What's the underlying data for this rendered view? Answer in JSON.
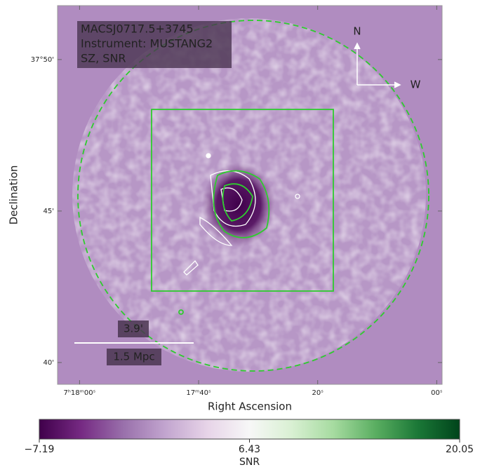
{
  "chart_data": {
    "type": "image",
    "xlabel": "Right Ascension",
    "ylabel": "Declination",
    "xlim": [
      63.7,
      -0.9
    ],
    "ylim": [
      39.28,
      51.78
    ],
    "xticks": [
      {
        "value": 60,
        "label": "7ʰ18ᵐ00ˢ"
      },
      {
        "value": 40,
        "label": "17ᵐ40ˢ"
      },
      {
        "value": 20,
        "label": "20ˢ"
      },
      {
        "value": 0,
        "label": "00ˢ"
      }
    ],
    "yticks": [
      {
        "value": 50,
        "label": "37°50'"
      },
      {
        "value": 45,
        "label": "45'"
      },
      {
        "value": 40,
        "label": "40'"
      }
    ],
    "annotations": [
      "MACSJ0717.5+3745",
      "Instrument: MUSTANG2",
      "SZ, SNR"
    ],
    "compass": [
      "N",
      "W"
    ],
    "scalebar": [
      "3.9'",
      "1.5 Mpc"
    ],
    "colorbar": {
      "label": "SNR",
      "clim": [
        -7.19,
        20.05
      ],
      "ticks": [
        {
          "value": -7.19,
          "label": "−7.19"
        },
        6.43,
        20.05
      ],
      "colormap": [
        "#40004b",
        "#762a83",
        "#9970ab",
        "#c2a5cf",
        "#e7d4e8",
        "#f7f7f7",
        "#d9f0d3",
        "#a6dba0",
        "#5aae61",
        "#1b7837",
        "#00441b"
      ]
    }
  }
}
